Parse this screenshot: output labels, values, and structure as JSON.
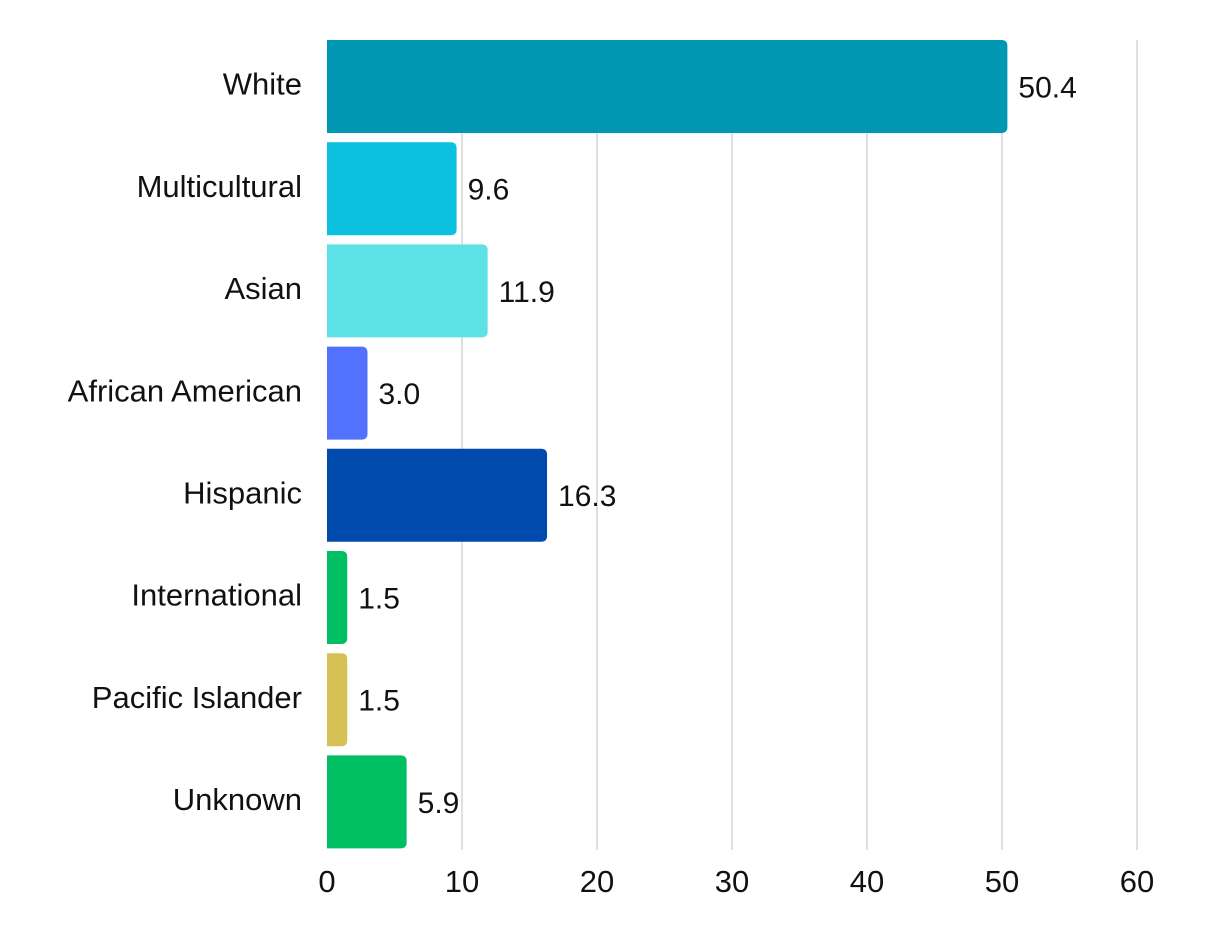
{
  "chart_data": {
    "type": "bar",
    "orientation": "horizontal",
    "title": "",
    "xlabel": "",
    "ylabel": "",
    "categories": [
      "White",
      "Multicultural",
      "Asian",
      "African American",
      "Hispanic",
      "International",
      "Pacific Islander",
      "Unknown"
    ],
    "values": [
      50.4,
      9.6,
      11.9,
      3.0,
      16.3,
      1.5,
      1.5,
      5.9
    ],
    "value_labels": [
      "50.4",
      "9.6",
      "11.9",
      "3.0",
      "16.3",
      "1.5",
      "1.5",
      "5.9"
    ],
    "colors": [
      "#0097b2",
      "#0cc0df",
      "#5ce1e6",
      "#5271ff",
      "#004aad",
      "#00bf63",
      "#d5c155",
      "#00bf63"
    ],
    "xlim": [
      0,
      60
    ],
    "xticks": [
      0,
      10,
      20,
      30,
      40,
      50,
      60
    ],
    "xtick_labels": [
      "0",
      "10",
      "20",
      "30",
      "40",
      "50",
      "60"
    ],
    "grid": "vertical",
    "legend": "none"
  }
}
